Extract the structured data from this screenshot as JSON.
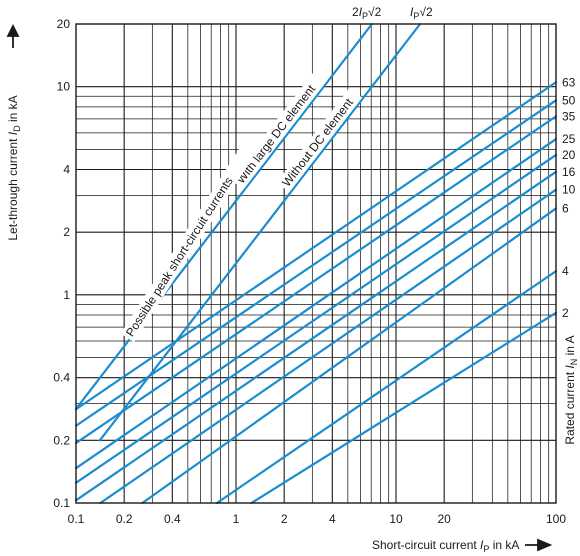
{
  "chart_data": {
    "type": "line",
    "x_scale": "log",
    "y_scale": "log",
    "xlim": [
      0.1,
      100
    ],
    "ylim": [
      0.1,
      20
    ],
    "x_ticks": [
      0.1,
      0.2,
      0.4,
      1,
      2,
      4,
      10,
      20,
      100
    ],
    "x_tick_labels": [
      "0.1",
      "0.2",
      "0.4",
      "1",
      "2",
      "4",
      "10",
      "20",
      "100"
    ],
    "y_ticks": [
      0.1,
      0.2,
      0.4,
      1,
      2,
      4,
      10,
      20
    ],
    "y_tick_labels": [
      "0.1",
      "0.2",
      "0.4",
      "1",
      "2",
      "4",
      "10",
      "20"
    ],
    "xlabel_text": "Short-circuit current ",
    "xlabel_symbol": "I",
    "xlabel_sub": "P",
    "xlabel_unit": " in kA",
    "ylabel_text": "Let-through current ",
    "ylabel_symbol": "I",
    "ylabel_sub": "D",
    "ylabel_unit": " in kA",
    "right_label_text": "Rated current ",
    "right_label_symbol": "I",
    "right_label_sub": "N",
    "right_label_unit": " in A",
    "grid": true,
    "line_color": "#1a8ccf",
    "grid_color": "#1a1a1a",
    "reference_lines": [
      {
        "id": "2ip",
        "top_label_prefix": "2",
        "top_label_symbol": "I",
        "top_label_sub": "P",
        "top_label_suffix": "√2",
        "rotated_label": "With large DC element",
        "points": [
          [
            0.1,
            0.283
          ],
          [
            7.07,
            20
          ]
        ]
      },
      {
        "id": "ip",
        "top_label_prefix": "",
        "top_label_symbol": "I",
        "top_label_sub": "P",
        "top_label_suffix": "√2",
        "rotated_label": "Without DC element",
        "points": [
          [
            0.141,
            0.2
          ],
          [
            14.14,
            20
          ]
        ]
      }
    ],
    "peak_label": "Possible peak short-circuit currents",
    "series": [
      {
        "name": "63",
        "points": [
          [
            0.1,
            0.282
          ],
          [
            100,
            10.5
          ]
        ]
      },
      {
        "name": "50",
        "points": [
          [
            0.1,
            0.235
          ],
          [
            100,
            8.6
          ]
        ]
      },
      {
        "name": "35",
        "points": [
          [
            0.1,
            0.194
          ],
          [
            100,
            7.2
          ]
        ]
      },
      {
        "name": "25",
        "points": [
          [
            0.1,
            0.147
          ],
          [
            100,
            5.6
          ]
        ]
      },
      {
        "name": "20",
        "points": [
          [
            0.1,
            0.125
          ],
          [
            100,
            4.7
          ]
        ]
      },
      {
        "name": "16",
        "points": [
          [
            0.1,
            0.103
          ],
          [
            100,
            3.9
          ]
        ]
      },
      {
        "name": "10",
        "points": [
          [
            0.142,
            0.1
          ],
          [
            100,
            3.2
          ]
        ]
      },
      {
        "name": "6",
        "points": [
          [
            0.26,
            0.1
          ],
          [
            100,
            2.6
          ]
        ]
      },
      {
        "name": "4",
        "points": [
          [
            0.76,
            0.1
          ],
          [
            100,
            1.3
          ]
        ]
      },
      {
        "name": "2",
        "points": [
          [
            1.25,
            0.1
          ],
          [
            100,
            0.82
          ]
        ]
      }
    ]
  }
}
